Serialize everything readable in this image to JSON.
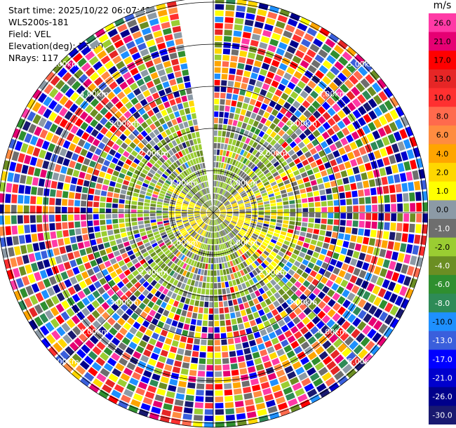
{
  "header": {
    "start_time": "Start time: 2025/10/22 06:07:43",
    "station": "WLS200s-181",
    "field": "Field: VEL",
    "elevation": "Elevation(deg): 35.00",
    "nrays": "NRays: 117"
  },
  "chart_data": {
    "type": "ppi-polar-scan",
    "field": "VEL",
    "units": "m/s",
    "elevation_deg": 35.0,
    "n_rays": 117,
    "range_rings_m": [
      1000,
      2000,
      3000,
      4000,
      5000
    ],
    "range_ring_labels": [
      "1.00km",
      "2.00km",
      "3.00km",
      "4.00km",
      "5.00km"
    ],
    "max_range_m": 5100,
    "missing_sector_deg": [
      350,
      360
    ],
    "colorbar": {
      "unit_label": "m/s",
      "levels": [
        "26.0",
        "21.0",
        "17.0",
        "13.0",
        "10.0",
        "8.0",
        "6.0",
        "4.0",
        "2.0",
        "1.0",
        "0.0",
        "-1.0",
        "-2.0",
        "-4.0",
        "-6.0",
        "-8.0",
        "-10.0",
        "-13.0",
        "-17.0",
        "-21.0",
        "-26.0",
        "-30.0"
      ],
      "colors": [
        "#ff3aa6",
        "#e60073",
        "#ff0000",
        "#e62626",
        "#ff3030",
        "#ff6a4d",
        "#ff8c40",
        "#ffa500",
        "#ffd700",
        "#ffff00",
        "#8c9aa6",
        "#6e6e6e",
        "#9acd32",
        "#6b8e23",
        "#2f8f2f",
        "#2e8b57",
        "#1e90ff",
        "#3a5fdc",
        "#0000ff",
        "#0000cd",
        "#00008b",
        "#191970"
      ]
    }
  }
}
